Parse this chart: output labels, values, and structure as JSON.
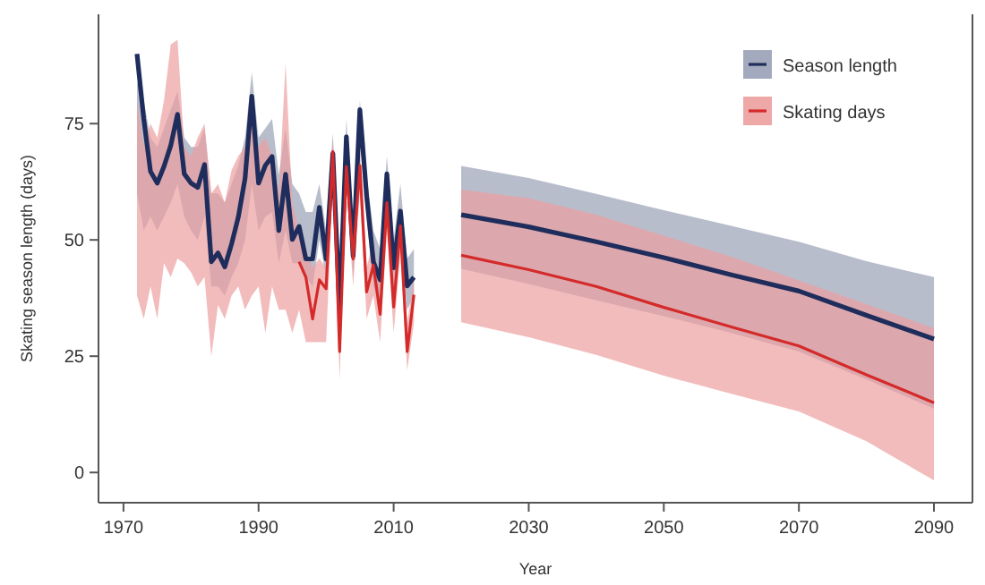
{
  "chart_data": {
    "type": "line",
    "xlabel": "Year",
    "ylabel": "Skating season length (days)",
    "xlim": [
      1966.3,
      2095.7
    ],
    "ylim": [
      -6.5,
      98.5
    ],
    "xticks": [
      1970,
      1990,
      2010,
      2030,
      2050,
      2070,
      2090
    ],
    "yticks": [
      0,
      25,
      50,
      75
    ],
    "grid": false,
    "legend": "top right",
    "line_style": "solid",
    "marker": "none",
    "series": [
      {
        "name": "Season length",
        "color": "#1f2d5c",
        "x": [
          1972,
          1973,
          1974,
          1975,
          1976,
          1977,
          1978,
          1979,
          1980,
          1981,
          1982,
          1983,
          1984,
          1985,
          1986,
          1987,
          1988,
          1989,
          1990,
          1991,
          1992,
          1993,
          1994,
          1995,
          1996,
          1997,
          1998,
          1999,
          2000,
          2001,
          2002,
          2003,
          2004,
          2005,
          2006,
          2007,
          2008,
          2009,
          2010,
          2011,
          2012,
          2013,
          2016,
          2020,
          2030,
          2040,
          2050,
          2060,
          2070,
          2080,
          2090
        ],
        "values": [
          90,
          76,
          64.7,
          62.2,
          65.8,
          70.3,
          77,
          64.2,
          62.2,
          61.3,
          66.2,
          45.3,
          47.2,
          44.2,
          49.1,
          54.9,
          63.2,
          80.9,
          62.2,
          66,
          67.9,
          52,
          64.1,
          50.1,
          52.9,
          45.9,
          45.9,
          57,
          45.9,
          68.6,
          35,
          72.2,
          46.5,
          78,
          59.4,
          45.3,
          41.4,
          64.2,
          44,
          56.2,
          40.1,
          42,
          null,
          55.4,
          52.8,
          49.6,
          46.2,
          42.5,
          39,
          33.8,
          28.7
        ],
        "lower": [
          60,
          52,
          55,
          52,
          55,
          58,
          62,
          55,
          52,
          50,
          55,
          40,
          40,
          38,
          42,
          45,
          50,
          62,
          52,
          55,
          56,
          45,
          52,
          45,
          45,
          42,
          40,
          50,
          42,
          64,
          30,
          67,
          42,
          72,
          55,
          40,
          36,
          58,
          38,
          50,
          35,
          38,
          null,
          43.8,
          40.5,
          37,
          33.6,
          30,
          26,
          20,
          13.7
        ],
        "upper": [
          84,
          80,
          72,
          70,
          74,
          78,
          82,
          72,
          70,
          70,
          74,
          60,
          60,
          58,
          62,
          66,
          72,
          86,
          72,
          74,
          76,
          64,
          74,
          62,
          60,
          56,
          56,
          62,
          52,
          73,
          40,
          76,
          52,
          80,
          64,
          52,
          48,
          68,
          50,
          62,
          46,
          48,
          null,
          65.9,
          63.3,
          59.9,
          56.4,
          53,
          49.6,
          45.4,
          42
        ]
      },
      {
        "name": "Skating days",
        "color": "#d42a2a",
        "x": [
          1972,
          1973,
          1974,
          1975,
          1976,
          1977,
          1978,
          1979,
          1980,
          1981,
          1982,
          1983,
          1984,
          1985,
          1986,
          1987,
          1988,
          1989,
          1990,
          1991,
          1992,
          1993,
          1994,
          1995,
          1996,
          1997,
          1998,
          1999,
          2000,
          2001,
          2002,
          2003,
          2004,
          2005,
          2006,
          2007,
          2008,
          2009,
          2010,
          2011,
          2012,
          2013,
          2016,
          2020,
          2030,
          2040,
          2050,
          2060,
          2070,
          2080,
          2090
        ],
        "values": [
          null,
          null,
          null,
          null,
          null,
          null,
          null,
          null,
          null,
          null,
          null,
          null,
          null,
          null,
          null,
          null,
          null,
          null,
          null,
          null,
          null,
          null,
          null,
          null,
          45.3,
          42,
          33,
          41.4,
          39.5,
          69,
          26,
          65.8,
          45.9,
          66,
          38.8,
          44.6,
          34,
          58,
          35.6,
          53,
          26,
          38.2,
          null,
          46.7,
          43.6,
          40,
          35.5,
          31.3,
          27.2,
          21,
          15
        ],
        "lower": [
          38,
          33,
          40,
          33,
          45,
          42,
          46,
          45,
          43,
          40,
          42,
          25,
          36,
          33,
          38,
          40,
          35,
          38,
          40,
          30,
          40,
          35,
          35,
          30,
          35,
          28,
          28,
          28,
          28,
          62,
          20,
          62,
          40,
          60,
          33,
          38,
          28,
          52,
          30,
          47,
          22,
          32,
          null,
          32.3,
          29.1,
          25.3,
          20.8,
          16.9,
          13.1,
          6.7,
          -1.7
        ],
        "upper": [
          80,
          70,
          75,
          72,
          80,
          92,
          93,
          70,
          68,
          72,
          75,
          60,
          62,
          58,
          65,
          68,
          70,
          76,
          70,
          72,
          68,
          60,
          88,
          58,
          52,
          48,
          44,
          46,
          44,
          72,
          30,
          70,
          50,
          70,
          44,
          50,
          40,
          62,
          42,
          58,
          32,
          42,
          null,
          60.8,
          59,
          55.4,
          50.9,
          46.4,
          41.3,
          36.2,
          31
        ]
      }
    ]
  }
}
